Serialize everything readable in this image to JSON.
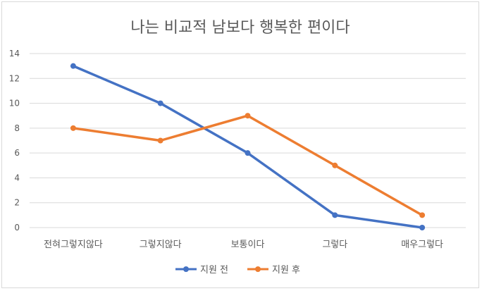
{
  "chart_data": {
    "type": "line",
    "title": "나는 비교적 남보다 행복한 편이다",
    "categories": [
      "전혀그렇지않다",
      "그렇지않다",
      "보통이다",
      "그렇다",
      "매우그렇다"
    ],
    "series": [
      {
        "name": "지원 전",
        "values": [
          13,
          10,
          6,
          1,
          0
        ],
        "color": "#4472c4"
      },
      {
        "name": "지원 후",
        "values": [
          8,
          7,
          9,
          5,
          1
        ],
        "color": "#ed7d31"
      }
    ],
    "yticks": [
      0,
      2,
      4,
      6,
      8,
      10,
      12,
      14
    ],
    "ylim": [
      0,
      14
    ],
    "grid": true,
    "legend": "bottom"
  }
}
